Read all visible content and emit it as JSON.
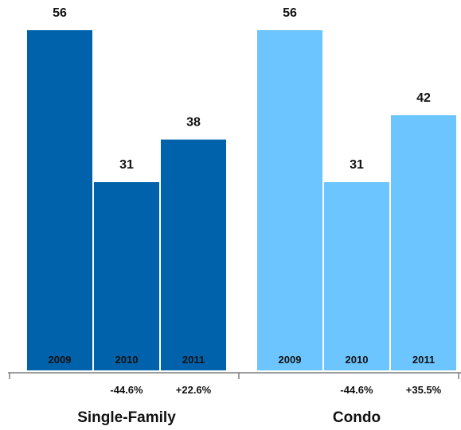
{
  "chart_data": {
    "type": "bar",
    "title": "",
    "xlabel": "",
    "ylabel": "",
    "ylim": [
      0,
      56
    ],
    "grid": false,
    "legend": "none",
    "groups": [
      {
        "name": "Single-Family",
        "color": "#0062AB",
        "categories": [
          "2009",
          "2010",
          "2011"
        ],
        "values": [
          56,
          31,
          38
        ],
        "value_labels": [
          "56",
          "31",
          "38"
        ],
        "changes": [
          "",
          "-44.6%",
          "+22.6%"
        ]
      },
      {
        "name": "Condo",
        "color": "#6DC5FF",
        "categories": [
          "2009",
          "2010",
          "2011"
        ],
        "values": [
          56,
          31,
          42
        ],
        "value_labels": [
          "56",
          "31",
          "42"
        ],
        "changes": [
          "",
          "-44.6%",
          "+35.5%"
        ]
      }
    ]
  }
}
